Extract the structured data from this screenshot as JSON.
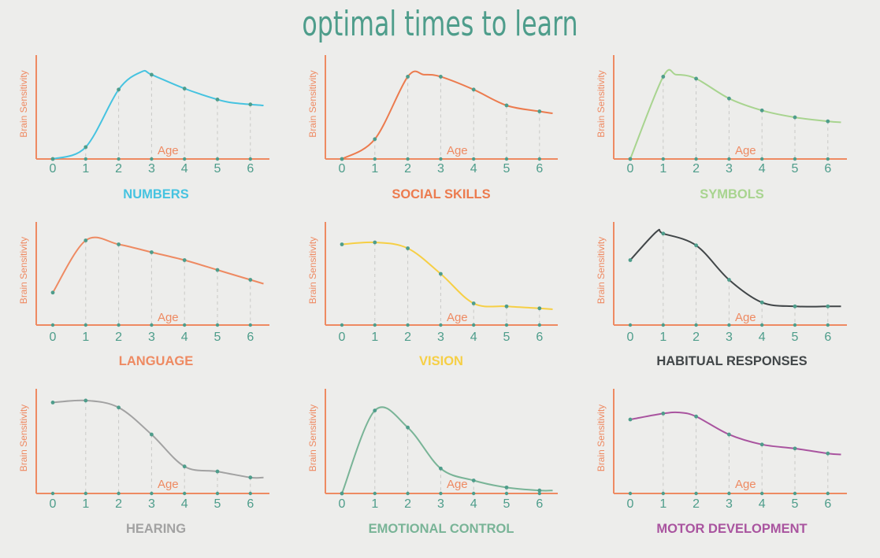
{
  "title": "optimal times to learn",
  "colors": {
    "axis": "#ee8a62",
    "ticks": "#4e9d8b",
    "grid": "#c9c9c6",
    "background": "#ededeb"
  },
  "chart_data": [
    {
      "type": "line",
      "title": "NUMBERS",
      "color": "#46c3e0",
      "xlabel": "Age",
      "ylabel": "Brain Sensitivity",
      "categories": [
        0,
        1,
        2,
        3,
        4,
        5,
        6
      ],
      "x": [
        0,
        1,
        2,
        2.7,
        3,
        4,
        5,
        5.4,
        6,
        6.4
      ],
      "values": [
        0,
        12,
        70,
        88,
        85,
        71,
        60,
        57,
        55,
        54
      ],
      "points_x": [
        0,
        1,
        2,
        3,
        4,
        5,
        6
      ],
      "xlim": [
        -0.2,
        6.6
      ],
      "ylim": [
        0,
        100
      ]
    },
    {
      "type": "line",
      "title": "SOCIAL SKILLS",
      "color": "#ec7b4e",
      "xlabel": "Age",
      "ylabel": "Brain Sensitivity",
      "categories": [
        0,
        1,
        2,
        3,
        4,
        5,
        6
      ],
      "x": [
        0,
        1,
        2,
        2.5,
        3,
        4,
        5,
        6,
        6.4
      ],
      "values": [
        0,
        20,
        83,
        85,
        83,
        70,
        54,
        48,
        46
      ],
      "points_x": [
        0,
        1,
        2,
        3,
        4,
        5,
        6
      ],
      "xlim": [
        -0.2,
        6.6
      ],
      "ylim": [
        0,
        100
      ]
    },
    {
      "type": "line",
      "title": "SYMBOLS",
      "color": "#a8d48f",
      "xlabel": "Age",
      "ylabel": "Brain Sensitivity",
      "categories": [
        0,
        1,
        2,
        3,
        4,
        5,
        6
      ],
      "x": [
        0,
        1,
        1.4,
        2,
        3,
        4,
        5,
        6,
        6.4
      ],
      "values": [
        0,
        83,
        85,
        81,
        61,
        49,
        42,
        38,
        37
      ],
      "points_x": [
        0,
        1,
        2,
        3,
        4,
        5,
        6
      ],
      "xlim": [
        -0.2,
        6.6
      ],
      "ylim": [
        0,
        100
      ]
    },
    {
      "type": "line",
      "title": "LANGUAGE",
      "color": "#ee8a62",
      "xlabel": "Age",
      "ylabel": "Brain Sensitivity",
      "categories": [
        0,
        1,
        2,
        3,
        4,
        5,
        6
      ],
      "x": [
        0,
        1,
        2,
        3,
        4,
        5,
        6,
        6.4
      ],
      "values": [
        33,
        86,
        82,
        74,
        66,
        56,
        46,
        42
      ],
      "points_x": [
        0,
        1,
        2,
        3,
        4,
        5,
        6
      ],
      "xlim": [
        -0.2,
        6.6
      ],
      "ylim": [
        0,
        100
      ]
    },
    {
      "type": "line",
      "title": "VISION",
      "color": "#f6cf45",
      "xlabel": "Age",
      "ylabel": "Brain Sensitivity",
      "categories": [
        0,
        1,
        2,
        3,
        4,
        5,
        6
      ],
      "x": [
        0,
        1,
        2,
        3,
        4,
        5,
        6,
        6.4
      ],
      "values": [
        82,
        84,
        78,
        52,
        22,
        19,
        17,
        16
      ],
      "points_x": [
        0,
        1,
        2,
        3,
        4,
        5,
        6
      ],
      "xlim": [
        -0.2,
        6.6
      ],
      "ylim": [
        0,
        100
      ]
    },
    {
      "type": "line",
      "title": "HABITUAL RESPONSES",
      "color": "#414648",
      "xlabel": "Age",
      "ylabel": "Brain Sensitivity",
      "categories": [
        0,
        1,
        2,
        3,
        4,
        5,
        6
      ],
      "x": [
        0,
        0.8,
        1,
        2,
        3,
        4,
        5,
        6,
        6.4
      ],
      "values": [
        66,
        95,
        93,
        81,
        46,
        23,
        19,
        19,
        19
      ],
      "points_x": [
        0,
        1,
        2,
        3,
        4,
        5,
        6
      ],
      "xlim": [
        -0.2,
        6.6
      ],
      "ylim": [
        0,
        100
      ]
    },
    {
      "type": "line",
      "title": "HEARING",
      "color": "#a2a2a2",
      "xlabel": "Age",
      "ylabel": "Brain Sensitivity",
      "categories": [
        0,
        1,
        2,
        3,
        4,
        5,
        6
      ],
      "x": [
        0,
        1,
        2,
        3,
        4,
        5,
        6,
        6.4
      ],
      "values": [
        91,
        93,
        86,
        59,
        27,
        22,
        16,
        16
      ],
      "points_x": [
        0,
        1,
        2,
        3,
        4,
        5,
        6
      ],
      "xlim": [
        -0.2,
        6.6
      ],
      "ylim": [
        0,
        100
      ]
    },
    {
      "type": "line",
      "title": "EMOTIONAL CONTROL",
      "color": "#79b497",
      "xlabel": "Age",
      "ylabel": "Brain Sensitivity",
      "categories": [
        0,
        1,
        2,
        3,
        4,
        5,
        6
      ],
      "x": [
        0,
        1,
        2,
        3,
        4,
        5,
        6,
        6.4
      ],
      "values": [
        0,
        83,
        66,
        25,
        13,
        6,
        3,
        3
      ],
      "points_x": [
        0,
        1,
        2,
        3,
        4,
        5,
        6
      ],
      "xlim": [
        -0.2,
        6.6
      ],
      "ylim": [
        0,
        100
      ]
    },
    {
      "type": "line",
      "title": "MOTOR DEVELOPMENT",
      "color": "#a9549f",
      "xlabel": "Age",
      "ylabel": "Brain Sensitivity",
      "categories": [
        0,
        1,
        2,
        3,
        4,
        5,
        6
      ],
      "x": [
        0,
        1,
        1.5,
        2,
        3,
        4,
        5,
        6,
        6.4
      ],
      "values": [
        74,
        80,
        81,
        77,
        59,
        49,
        45,
        40,
        39
      ],
      "points_x": [
        0,
        1,
        2,
        3,
        4,
        5,
        6
      ],
      "xlim": [
        -0.2,
        6.6
      ],
      "ylim": [
        0,
        100
      ]
    }
  ]
}
